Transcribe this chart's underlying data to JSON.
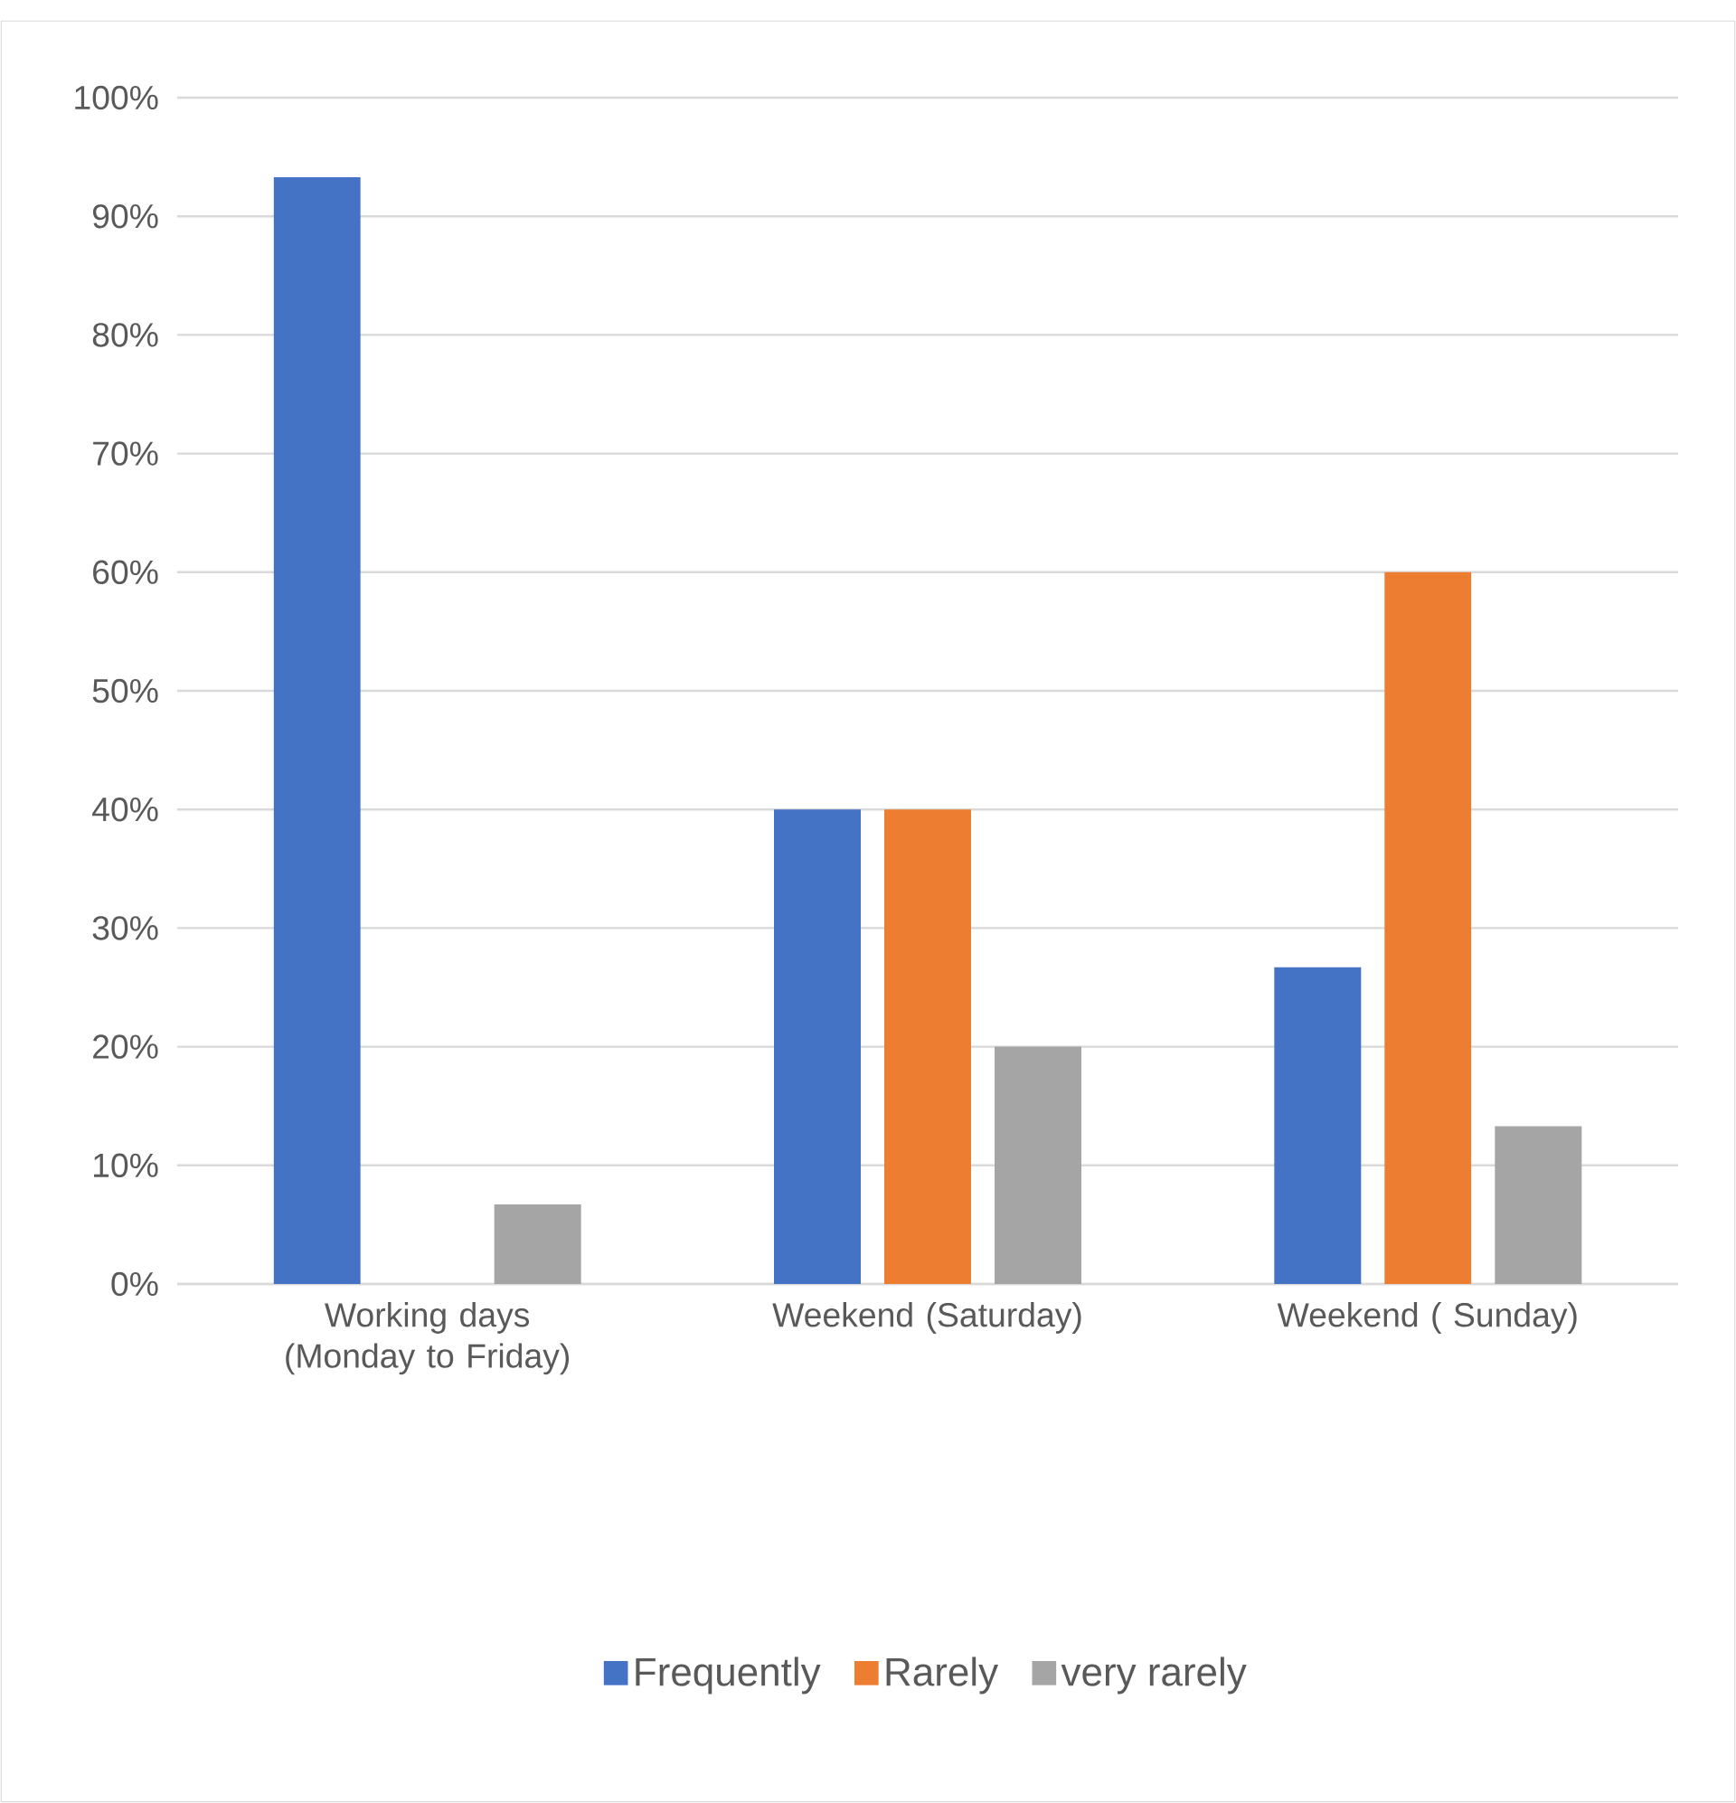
{
  "chart_data": {
    "type": "bar",
    "categories": [
      "Working days (Monday to Friday)",
      "Weekend (Saturday)",
      "Weekend ( Sunday)"
    ],
    "series": [
      {
        "name": "Frequently",
        "color": "#4472c4",
        "values": [
          93.3,
          40,
          26.7
        ]
      },
      {
        "name": "Rarely",
        "color": "#ed7d31",
        "values": [
          0,
          40,
          60
        ]
      },
      {
        "name": "very rarely",
        "color": "#a5a5a5",
        "values": [
          6.7,
          20,
          13.3
        ]
      }
    ],
    "ylim": [
      0,
      100
    ],
    "yticks": [
      {
        "value": 0,
        "label": "0%"
      },
      {
        "value": 10,
        "label": "10%"
      },
      {
        "value": 20,
        "label": "20%"
      },
      {
        "value": 30,
        "label": "30%"
      },
      {
        "value": 40,
        "label": "40%"
      },
      {
        "value": 50,
        "label": "50%"
      },
      {
        "value": 60,
        "label": "60%"
      },
      {
        "value": 70,
        "label": "70%"
      },
      {
        "value": 80,
        "label": "80%"
      },
      {
        "value": 90,
        "label": "90%"
      },
      {
        "value": 100,
        "label": "100%"
      }
    ],
    "grid": "y",
    "legend": "bottom"
  }
}
